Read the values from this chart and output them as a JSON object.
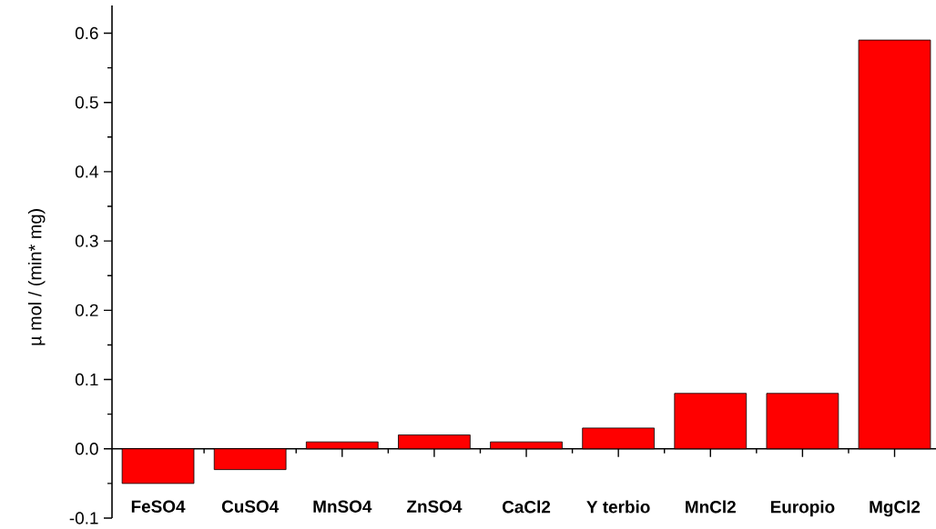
{
  "chart_data": {
    "type": "bar",
    "ylabel": "µ mol / (min* mg)",
    "categories": [
      "FeSO4",
      "CuSO4",
      "MnSO4",
      "ZnSO4",
      "CaCl2",
      "Y terbio",
      "MnCl2",
      "Europio",
      "MgCl2"
    ],
    "values": [
      -0.05,
      -0.03,
      0.01,
      0.02,
      0.01,
      0.03,
      0.08,
      0.08,
      0.59
    ],
    "color": "#ff0000",
    "ylim": [
      -0.1,
      0.64
    ],
    "yticks": [
      -0.1,
      {
        "value": 0,
        "label": "0.0"
      },
      0.1,
      0.2,
      0.3,
      0.4,
      0.5,
      0.6
    ]
  }
}
